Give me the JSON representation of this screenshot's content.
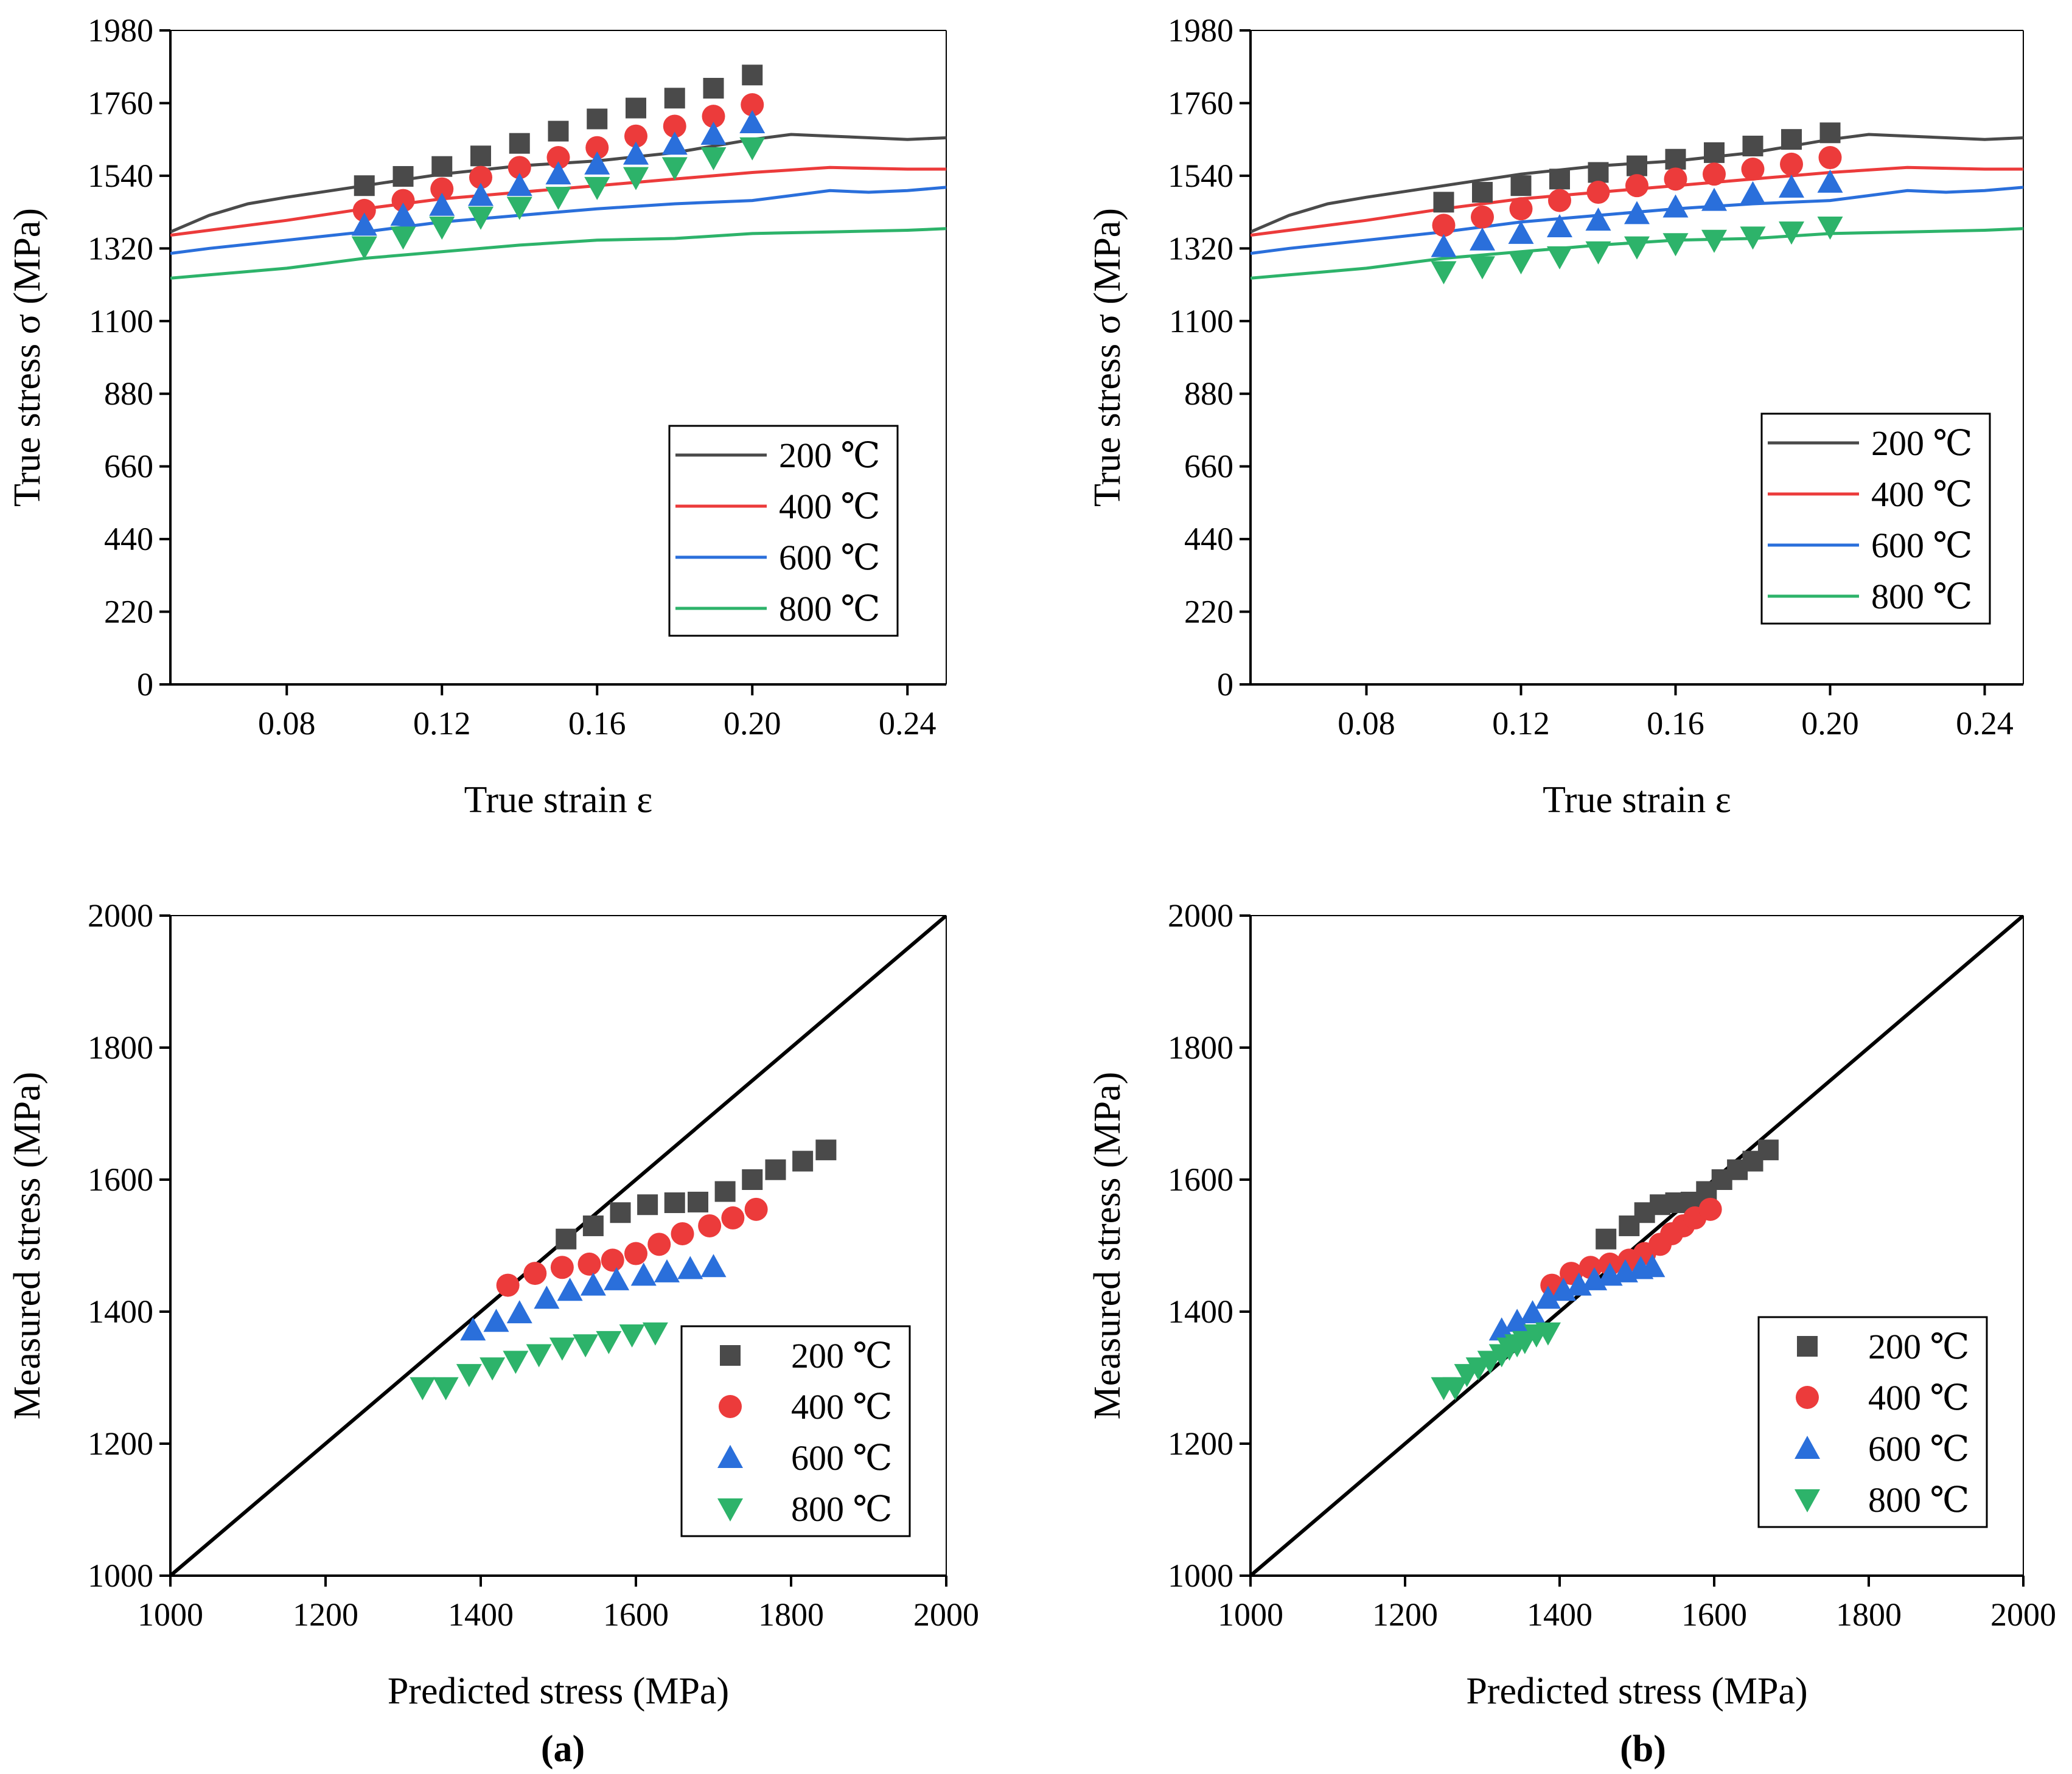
{
  "figure": {
    "caption_a": "(a)",
    "caption_b": "(b)",
    "colors": {
      "200": "#4a4a4a",
      "400": "#ec3b3b",
      "600": "#2a6fdb",
      "800": "#2db36a"
    }
  },
  "chart_data": [
    {
      "id": "a-top",
      "type": "line",
      "xlabel": "True strain ε",
      "ylabel": "True stress σ (MPa)",
      "xlim": [
        0.05,
        0.25
      ],
      "ylim": [
        0,
        1980
      ],
      "xticks": [
        0.08,
        0.12,
        0.16,
        0.2,
        0.24
      ],
      "xtick_labels": [
        "0.08",
        "0.12",
        "0.16",
        "0.20",
        "0.24"
      ],
      "yticks": [
        0,
        220,
        440,
        660,
        880,
        1100,
        1320,
        1540,
        1760,
        1980
      ],
      "ytick_labels": [
        "0",
        "220",
        "440",
        "660",
        "880",
        "1100",
        "1320",
        "1540",
        "1760",
        "1980"
      ],
      "legend": [
        "200 ℃",
        "400 ℃",
        "600 ℃",
        "800 ℃"
      ],
      "legend_placement": "lower-right",
      "series": [
        {
          "name": "200 ℃",
          "role": "experimental",
          "x": [
            0.05,
            0.06,
            0.07,
            0.08,
            0.1,
            0.12,
            0.14,
            0.16,
            0.18,
            0.2,
            0.21,
            0.22,
            0.24,
            0.25
          ],
          "y": [
            1370,
            1420,
            1455,
            1475,
            1510,
            1545,
            1570,
            1585,
            1610,
            1650,
            1665,
            1660,
            1650,
            1655
          ]
        },
        {
          "name": "400 ℃",
          "role": "experimental",
          "x": [
            0.05,
            0.06,
            0.08,
            0.1,
            0.12,
            0.14,
            0.16,
            0.18,
            0.2,
            0.22,
            0.24,
            0.25
          ],
          "y": [
            1360,
            1375,
            1405,
            1440,
            1470,
            1490,
            1510,
            1530,
            1550,
            1565,
            1560,
            1560
          ]
        },
        {
          "name": "600 ℃",
          "role": "experimental",
          "x": [
            0.05,
            0.06,
            0.08,
            0.1,
            0.12,
            0.14,
            0.16,
            0.18,
            0.2,
            0.21,
            0.22,
            0.23,
            0.24,
            0.25
          ],
          "y": [
            1305,
            1320,
            1345,
            1370,
            1400,
            1420,
            1440,
            1455,
            1465,
            1480,
            1495,
            1490,
            1495,
            1505
          ]
        },
        {
          "name": "800 ℃",
          "role": "experimental",
          "x": [
            0.05,
            0.06,
            0.08,
            0.1,
            0.12,
            0.14,
            0.16,
            0.18,
            0.2,
            0.22,
            0.24,
            0.25
          ],
          "y": [
            1230,
            1240,
            1260,
            1290,
            1310,
            1330,
            1345,
            1350,
            1365,
            1370,
            1375,
            1380
          ]
        },
        {
          "name": "200 ℃",
          "role": "predicted",
          "marker": "square",
          "x": [
            0.1,
            0.11,
            0.12,
            0.13,
            0.14,
            0.15,
            0.16,
            0.17,
            0.18,
            0.19,
            0.2
          ],
          "y": [
            1510,
            1538,
            1568,
            1600,
            1638,
            1675,
            1712,
            1745,
            1775,
            1805,
            1845
          ]
        },
        {
          "name": "400 ℃",
          "role": "predicted",
          "marker": "circle",
          "x": [
            0.1,
            0.11,
            0.12,
            0.13,
            0.14,
            0.15,
            0.16,
            0.17,
            0.18,
            0.19,
            0.2
          ],
          "y": [
            1435,
            1465,
            1500,
            1535,
            1565,
            1595,
            1625,
            1660,
            1690,
            1720,
            1755
          ]
        },
        {
          "name": "600 ℃",
          "role": "predicted",
          "marker": "triangle-up",
          "x": [
            0.1,
            0.11,
            0.12,
            0.13,
            0.14,
            0.15,
            0.16,
            0.17,
            0.18,
            0.19,
            0.2
          ],
          "y": [
            1390,
            1420,
            1450,
            1480,
            1510,
            1545,
            1575,
            1605,
            1635,
            1665,
            1700
          ]
        },
        {
          "name": "800 ℃",
          "role": "predicted",
          "marker": "triangle-down",
          "x": [
            0.1,
            0.11,
            0.12,
            0.13,
            0.14,
            0.15,
            0.16,
            0.17,
            0.18,
            0.19,
            0.2
          ],
          "y": [
            1325,
            1355,
            1385,
            1415,
            1445,
            1475,
            1505,
            1535,
            1565,
            1595,
            1625
          ]
        }
      ]
    },
    {
      "id": "b-top",
      "type": "line",
      "xlabel": "True strain ε",
      "ylabel": "True stress σ (MPa)",
      "xlim": [
        0.05,
        0.25
      ],
      "ylim": [
        0,
        1980
      ],
      "xticks": [
        0.08,
        0.12,
        0.16,
        0.2,
        0.24
      ],
      "xtick_labels": [
        "0.08",
        "0.12",
        "0.16",
        "0.20",
        "0.24"
      ],
      "yticks": [
        0,
        220,
        440,
        660,
        880,
        1100,
        1320,
        1540,
        1760,
        1980
      ],
      "ytick_labels": [
        "0",
        "220",
        "440",
        "660",
        "880",
        "1100",
        "1320",
        "1540",
        "1760",
        "1980"
      ],
      "legend": [
        "200 ℃",
        "400 ℃",
        "600 ℃",
        "800 ℃"
      ],
      "legend_placement": "lower-right",
      "series": [
        {
          "name": "200 ℃",
          "role": "experimental",
          "x": [
            0.05,
            0.06,
            0.07,
            0.08,
            0.1,
            0.12,
            0.14,
            0.16,
            0.18,
            0.2,
            0.21,
            0.22,
            0.24,
            0.25
          ],
          "y": [
            1370,
            1420,
            1455,
            1475,
            1510,
            1545,
            1570,
            1585,
            1610,
            1650,
            1665,
            1660,
            1650,
            1655
          ]
        },
        {
          "name": "400 ℃",
          "role": "experimental",
          "x": [
            0.05,
            0.06,
            0.08,
            0.1,
            0.12,
            0.14,
            0.16,
            0.18,
            0.2,
            0.22,
            0.24,
            0.25
          ],
          "y": [
            1360,
            1375,
            1405,
            1440,
            1470,
            1490,
            1510,
            1530,
            1550,
            1565,
            1560,
            1560
          ]
        },
        {
          "name": "600 ℃",
          "role": "experimental",
          "x": [
            0.05,
            0.06,
            0.08,
            0.1,
            0.12,
            0.14,
            0.16,
            0.18,
            0.2,
            0.21,
            0.22,
            0.23,
            0.24,
            0.25
          ],
          "y": [
            1305,
            1320,
            1345,
            1370,
            1400,
            1420,
            1440,
            1455,
            1465,
            1480,
            1495,
            1490,
            1495,
            1505
          ]
        },
        {
          "name": "800 ℃",
          "role": "experimental",
          "x": [
            0.05,
            0.06,
            0.08,
            0.1,
            0.12,
            0.14,
            0.16,
            0.18,
            0.2,
            0.22,
            0.24,
            0.25
          ],
          "y": [
            1230,
            1240,
            1260,
            1290,
            1310,
            1330,
            1345,
            1350,
            1365,
            1370,
            1375,
            1380
          ]
        },
        {
          "name": "200 ℃",
          "role": "predicted",
          "marker": "square",
          "x": [
            0.1,
            0.11,
            0.12,
            0.13,
            0.14,
            0.15,
            0.16,
            0.17,
            0.18,
            0.19,
            0.2
          ],
          "y": [
            1460,
            1490,
            1510,
            1530,
            1550,
            1570,
            1590,
            1610,
            1630,
            1650,
            1670
          ]
        },
        {
          "name": "400 ℃",
          "role": "predicted",
          "marker": "circle",
          "x": [
            0.1,
            0.11,
            0.12,
            0.13,
            0.14,
            0.15,
            0.16,
            0.17,
            0.18,
            0.19,
            0.2
          ],
          "y": [
            1390,
            1415,
            1440,
            1465,
            1490,
            1510,
            1530,
            1545,
            1560,
            1575,
            1595
          ]
        },
        {
          "name": "600 ℃",
          "role": "predicted",
          "marker": "triangle-up",
          "x": [
            0.1,
            0.11,
            0.12,
            0.13,
            0.14,
            0.15,
            0.16,
            0.17,
            0.18,
            0.19,
            0.2
          ],
          "y": [
            1325,
            1345,
            1365,
            1385,
            1405,
            1425,
            1445,
            1465,
            1485,
            1505,
            1520
          ]
        },
        {
          "name": "800 ℃",
          "role": "predicted",
          "marker": "triangle-down",
          "x": [
            0.1,
            0.11,
            0.12,
            0.13,
            0.14,
            0.15,
            0.16,
            0.17,
            0.18,
            0.19,
            0.2
          ],
          "y": [
            1250,
            1265,
            1280,
            1295,
            1310,
            1325,
            1335,
            1345,
            1355,
            1370,
            1385
          ]
        }
      ]
    },
    {
      "id": "a-bottom",
      "type": "scatter",
      "xlabel": "Predicted stress (MPa)",
      "ylabel": "Measured stress (MPa)",
      "xlim": [
        1000,
        2000
      ],
      "ylim": [
        1000,
        2000
      ],
      "xticks": [
        1000,
        1200,
        1400,
        1600,
        1800,
        2000
      ],
      "xtick_labels": [
        "1000",
        "1200",
        "1400",
        "1600",
        "1800",
        "2000"
      ],
      "yticks": [
        1000,
        1200,
        1400,
        1600,
        1800,
        2000
      ],
      "ytick_labels": [
        "1000",
        "1200",
        "1400",
        "1600",
        "1800",
        "2000"
      ],
      "reference_line": {
        "x": [
          1000,
          2000
        ],
        "y": [
          1000,
          2000
        ]
      },
      "legend": [
        "200 ℃",
        "400 ℃",
        "600 ℃",
        "800 ℃"
      ],
      "legend_placement": "lower-right",
      "series": [
        {
          "name": "200 ℃",
          "marker": "square",
          "x": [
            1510,
            1545,
            1580,
            1615,
            1650,
            1680,
            1715,
            1750,
            1780,
            1815,
            1845
          ],
          "y": [
            1510,
            1530,
            1550,
            1562,
            1565,
            1566,
            1582,
            1600,
            1615,
            1628,
            1645
          ]
        },
        {
          "name": "400 ℃",
          "marker": "circle",
          "x": [
            1435,
            1470,
            1505,
            1540,
            1570,
            1600,
            1630,
            1660,
            1695,
            1725,
            1755
          ],
          "y": [
            1440,
            1458,
            1467,
            1472,
            1478,
            1488,
            1502,
            1518,
            1530,
            1542,
            1555
          ]
        },
        {
          "name": "600 ℃",
          "marker": "triangle-up",
          "x": [
            1390,
            1420,
            1450,
            1485,
            1515,
            1545,
            1575,
            1610,
            1640,
            1670,
            1700
          ],
          "y": [
            1372,
            1385,
            1398,
            1420,
            1432,
            1440,
            1448,
            1455,
            1460,
            1465,
            1468
          ]
        },
        {
          "name": "800 ℃",
          "marker": "triangle-down",
          "x": [
            1325,
            1355,
            1385,
            1415,
            1445,
            1475,
            1505,
            1535,
            1565,
            1595,
            1625
          ],
          "y": [
            1285,
            1285,
            1305,
            1315,
            1325,
            1335,
            1345,
            1350,
            1355,
            1365,
            1368
          ]
        }
      ]
    },
    {
      "id": "b-bottom",
      "type": "scatter",
      "xlabel": "Predicted stress (MPa)",
      "ylabel": "Measured stress (MPa)",
      "xlim": [
        1000,
        2000
      ],
      "ylim": [
        1000,
        2000
      ],
      "xticks": [
        1000,
        1200,
        1400,
        1600,
        1800,
        2000
      ],
      "xtick_labels": [
        "1000",
        "1200",
        "1400",
        "1600",
        "1800",
        "2000"
      ],
      "yticks": [
        1000,
        1200,
        1400,
        1600,
        1800,
        2000
      ],
      "ytick_labels": [
        "1000",
        "1200",
        "1400",
        "1600",
        "1800",
        "2000"
      ],
      "reference_line": {
        "x": [
          1000,
          2000
        ],
        "y": [
          1000,
          2000
        ]
      },
      "legend": [
        "200 ℃",
        "400 ℃",
        "600 ℃",
        "800 ℃"
      ],
      "legend_placement": "lower-right",
      "series": [
        {
          "name": "200 ℃",
          "marker": "square",
          "x": [
            1460,
            1490,
            1510,
            1530,
            1550,
            1570,
            1590,
            1610,
            1630,
            1650,
            1670
          ],
          "y": [
            1510,
            1530,
            1550,
            1562,
            1565,
            1566,
            1582,
            1600,
            1615,
            1628,
            1645
          ]
        },
        {
          "name": "400 ℃",
          "marker": "circle",
          "x": [
            1390,
            1415,
            1440,
            1465,
            1490,
            1510,
            1530,
            1545,
            1560,
            1575,
            1595
          ],
          "y": [
            1440,
            1458,
            1467,
            1472,
            1478,
            1488,
            1502,
            1518,
            1530,
            1542,
            1555
          ]
        },
        {
          "name": "600 ℃",
          "marker": "triangle-up",
          "x": [
            1325,
            1345,
            1365,
            1385,
            1405,
            1425,
            1445,
            1465,
            1485,
            1505,
            1520
          ],
          "y": [
            1372,
            1385,
            1398,
            1420,
            1432,
            1440,
            1448,
            1455,
            1460,
            1465,
            1468
          ]
        },
        {
          "name": "800 ℃",
          "marker": "triangle-down",
          "x": [
            1250,
            1265,
            1280,
            1295,
            1310,
            1325,
            1335,
            1345,
            1355,
            1370,
            1385
          ],
          "y": [
            1285,
            1285,
            1305,
            1315,
            1325,
            1335,
            1345,
            1350,
            1355,
            1365,
            1368
          ]
        }
      ]
    }
  ]
}
